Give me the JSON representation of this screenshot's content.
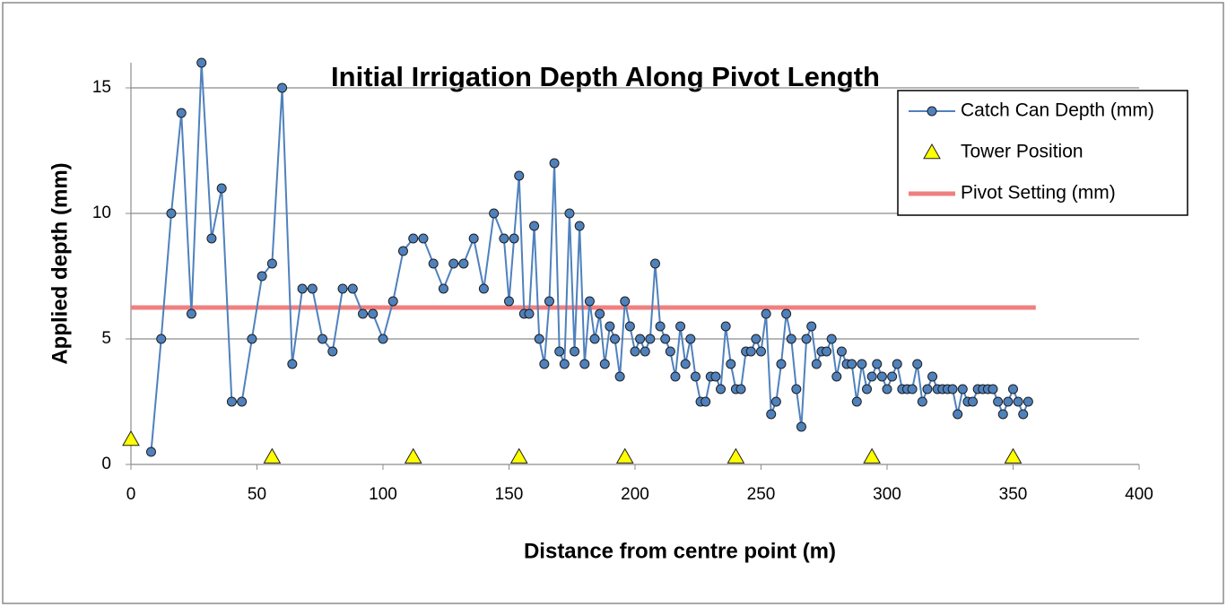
{
  "chart_data": {
    "type": "line",
    "title": "Initial Irrigation Depth Along Pivot Length",
    "x_label": "Distance from centre point (m)",
    "y_label": "Applied depth (mm)",
    "xlim": [
      0,
      400
    ],
    "xticks": [
      0,
      50,
      100,
      150,
      200,
      250,
      300,
      350,
      400
    ],
    "ylim": [
      0,
      16
    ],
    "yticks": [
      0,
      5,
      10,
      15
    ],
    "grid": true,
    "legend": "upper right",
    "series": [
      {
        "name": "Catch Can Depth (mm)",
        "color": "#4f81bd",
        "style": "line-marker",
        "x": [
          8,
          12,
          16,
          20,
          24,
          28,
          32,
          36,
          40,
          44,
          48,
          52,
          56,
          60,
          64,
          68,
          72,
          76,
          80,
          84,
          88,
          92,
          96,
          100,
          104,
          108,
          112,
          116,
          120,
          124,
          128,
          132,
          136,
          140,
          144,
          148,
          150,
          152,
          154,
          156,
          158,
          160,
          162,
          164,
          166,
          168,
          170,
          172,
          174,
          176,
          178,
          180,
          182,
          184,
          186,
          188,
          190,
          192,
          194,
          196,
          198,
          200,
          202,
          204,
          206,
          208,
          210,
          212,
          214,
          216,
          218,
          220,
          222,
          224,
          226,
          228,
          230,
          232,
          234,
          236,
          238,
          240,
          242,
          244,
          246,
          248,
          250,
          252,
          254,
          256,
          258,
          260,
          262,
          264,
          266,
          268,
          270,
          272,
          274,
          276,
          278,
          280,
          282,
          284,
          286,
          288,
          290,
          292,
          294,
          296,
          298,
          300,
          302,
          304,
          306,
          308,
          310,
          312,
          314,
          316,
          318,
          320,
          322,
          324,
          326,
          328,
          330,
          332,
          334,
          336,
          338,
          340,
          342,
          344,
          346,
          348,
          350,
          352,
          354,
          356
        ],
        "values": [
          0.5,
          5,
          10,
          14,
          6,
          16,
          9,
          11,
          2.5,
          2.5,
          5,
          7.5,
          8,
          15,
          4,
          7,
          7,
          5,
          4.5,
          7,
          7,
          6,
          6,
          5,
          6.5,
          8.5,
          9,
          9,
          8,
          7,
          8,
          8,
          9,
          7,
          10,
          9,
          6.5,
          9,
          11.5,
          6,
          6,
          9.5,
          5,
          4,
          6.5,
          12,
          4.5,
          4,
          10,
          4.5,
          9.5,
          4,
          6.5,
          5,
          6,
          4,
          5.5,
          5,
          3.5,
          6.5,
          5.5,
          4.5,
          5,
          4.5,
          5,
          8,
          5.5,
          5,
          4.5,
          3.5,
          5.5,
          4,
          5,
          3.5,
          2.5,
          2.5,
          3.5,
          3.5,
          3,
          5.5,
          4,
          3,
          3,
          4.5,
          4.5,
          5,
          4.5,
          6,
          2,
          2.5,
          4,
          6,
          5,
          3,
          1.5,
          5,
          5.5,
          4,
          4.5,
          4.5,
          5,
          3.5,
          4.5,
          4,
          4,
          2.5,
          4,
          3,
          3.5,
          4,
          3.5,
          3,
          3.5,
          4,
          3,
          3,
          3,
          4,
          2.5,
          3,
          3.5,
          3,
          3,
          3,
          3,
          2,
          3,
          2.5,
          2.5,
          3,
          3,
          3,
          3,
          2.5,
          2,
          2.5,
          3,
          2.5,
          2,
          2.5
        ]
      },
      {
        "name": "Tower Position",
        "color": "#ffff00",
        "style": "marker",
        "x": [
          0,
          56,
          112,
          154,
          196,
          240,
          294,
          350
        ],
        "values": [
          1,
          0.3,
          0.3,
          0.3,
          0.3,
          0.3,
          0.3,
          0.3
        ]
      },
      {
        "name": "Pivot Setting (mm)",
        "color": "#f08080",
        "style": "line",
        "x": [
          0,
          359
        ],
        "values": [
          6.25,
          6.25
        ]
      }
    ]
  }
}
